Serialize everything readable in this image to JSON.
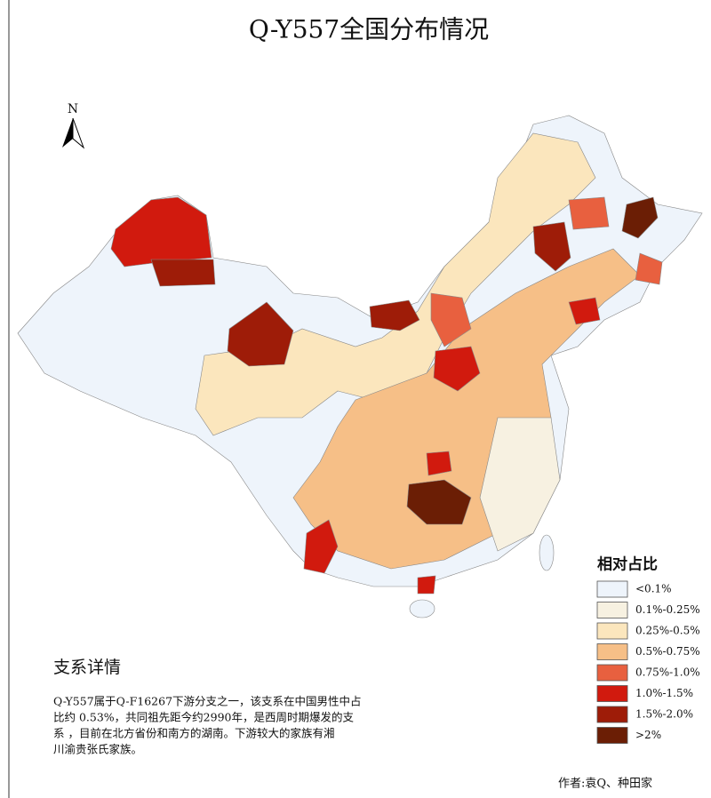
{
  "title": "Q-Y557全国分布情况",
  "north": "N",
  "legend": {
    "title": "相对占比",
    "items": [
      {
        "label": "<0.1%",
        "color": "#eef4fb"
      },
      {
        "label": "0.1%-0.25%",
        "color": "#f7f1e1"
      },
      {
        "label": "0.25%-0.5%",
        "color": "#fbe6bd"
      },
      {
        "label": "0.5%-0.75%",
        "color": "#f6bf87"
      },
      {
        "label": "0.75%-1.0%",
        "color": "#e8603f"
      },
      {
        "label": "1.0%-1.5%",
        "color": "#d11a0e"
      },
      {
        "label": "1.5%-2.0%",
        "color": "#9e1c08"
      },
      {
        "label": ">2%",
        "color": "#6b1e05"
      }
    ]
  },
  "description": {
    "title": "支系详情",
    "lines": [
      "Q-Y557属于Q-F16267下游分支之一，该支系在中国男性中占",
      "比约 0.53%，共同祖先距今约2990年，是西周时期爆发的支",
      "系 ，目前在北方省份和南方的湖南。下游较大的家族有湘",
      "川渝贵张氏家族。"
    ]
  },
  "author": "作者:袁Q、种田家"
}
